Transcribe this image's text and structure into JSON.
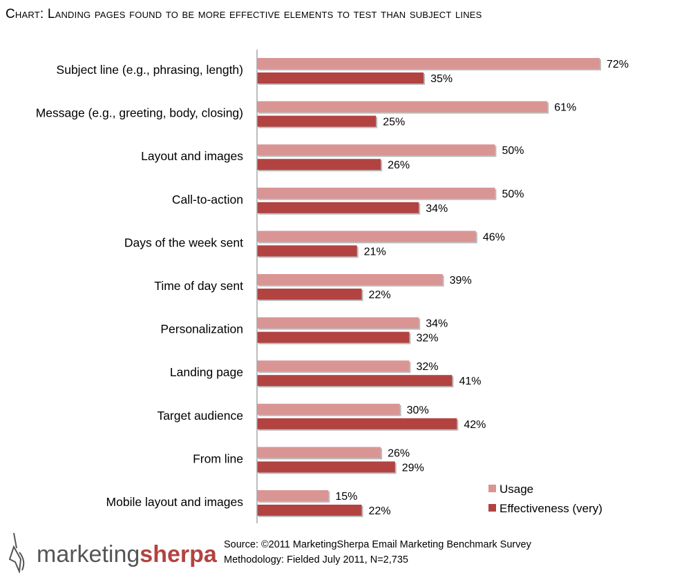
{
  "title": "Chart: Landing pages found to be more effective elements to test than subject lines",
  "chart_data": {
    "type": "bar",
    "orientation": "horizontal",
    "categories": [
      "Subject line (e.g., phrasing, length)",
      "Message (e.g., greeting, body, closing)",
      "Layout and images",
      "Call-to-action",
      "Days of the week sent",
      "Time of day sent",
      "Personalization",
      "Landing page",
      "Target audience",
      "From line",
      "Mobile layout and images"
    ],
    "series": [
      {
        "name": "Usage",
        "color": "#d99594",
        "values": [
          72,
          61,
          50,
          50,
          46,
          39,
          34,
          32,
          30,
          26,
          15
        ]
      },
      {
        "name": "Effectiveness (very)",
        "color": "#b24341",
        "values": [
          35,
          25,
          26,
          34,
          21,
          22,
          32,
          41,
          42,
          29,
          22
        ]
      }
    ],
    "value_suffix": "%",
    "xlim": [
      0,
      72
    ],
    "grid": false,
    "legend_position": "bottom-right"
  },
  "logo": {
    "part1": "marketing",
    "part2": "sherpa",
    "icon": "pen-nib-icon"
  },
  "source_line": "Source: ©2011 MarketingSherpa Email Marketing Benchmark Survey",
  "methodology_line": "Methodology: Fielded July 2011, N=2,735"
}
